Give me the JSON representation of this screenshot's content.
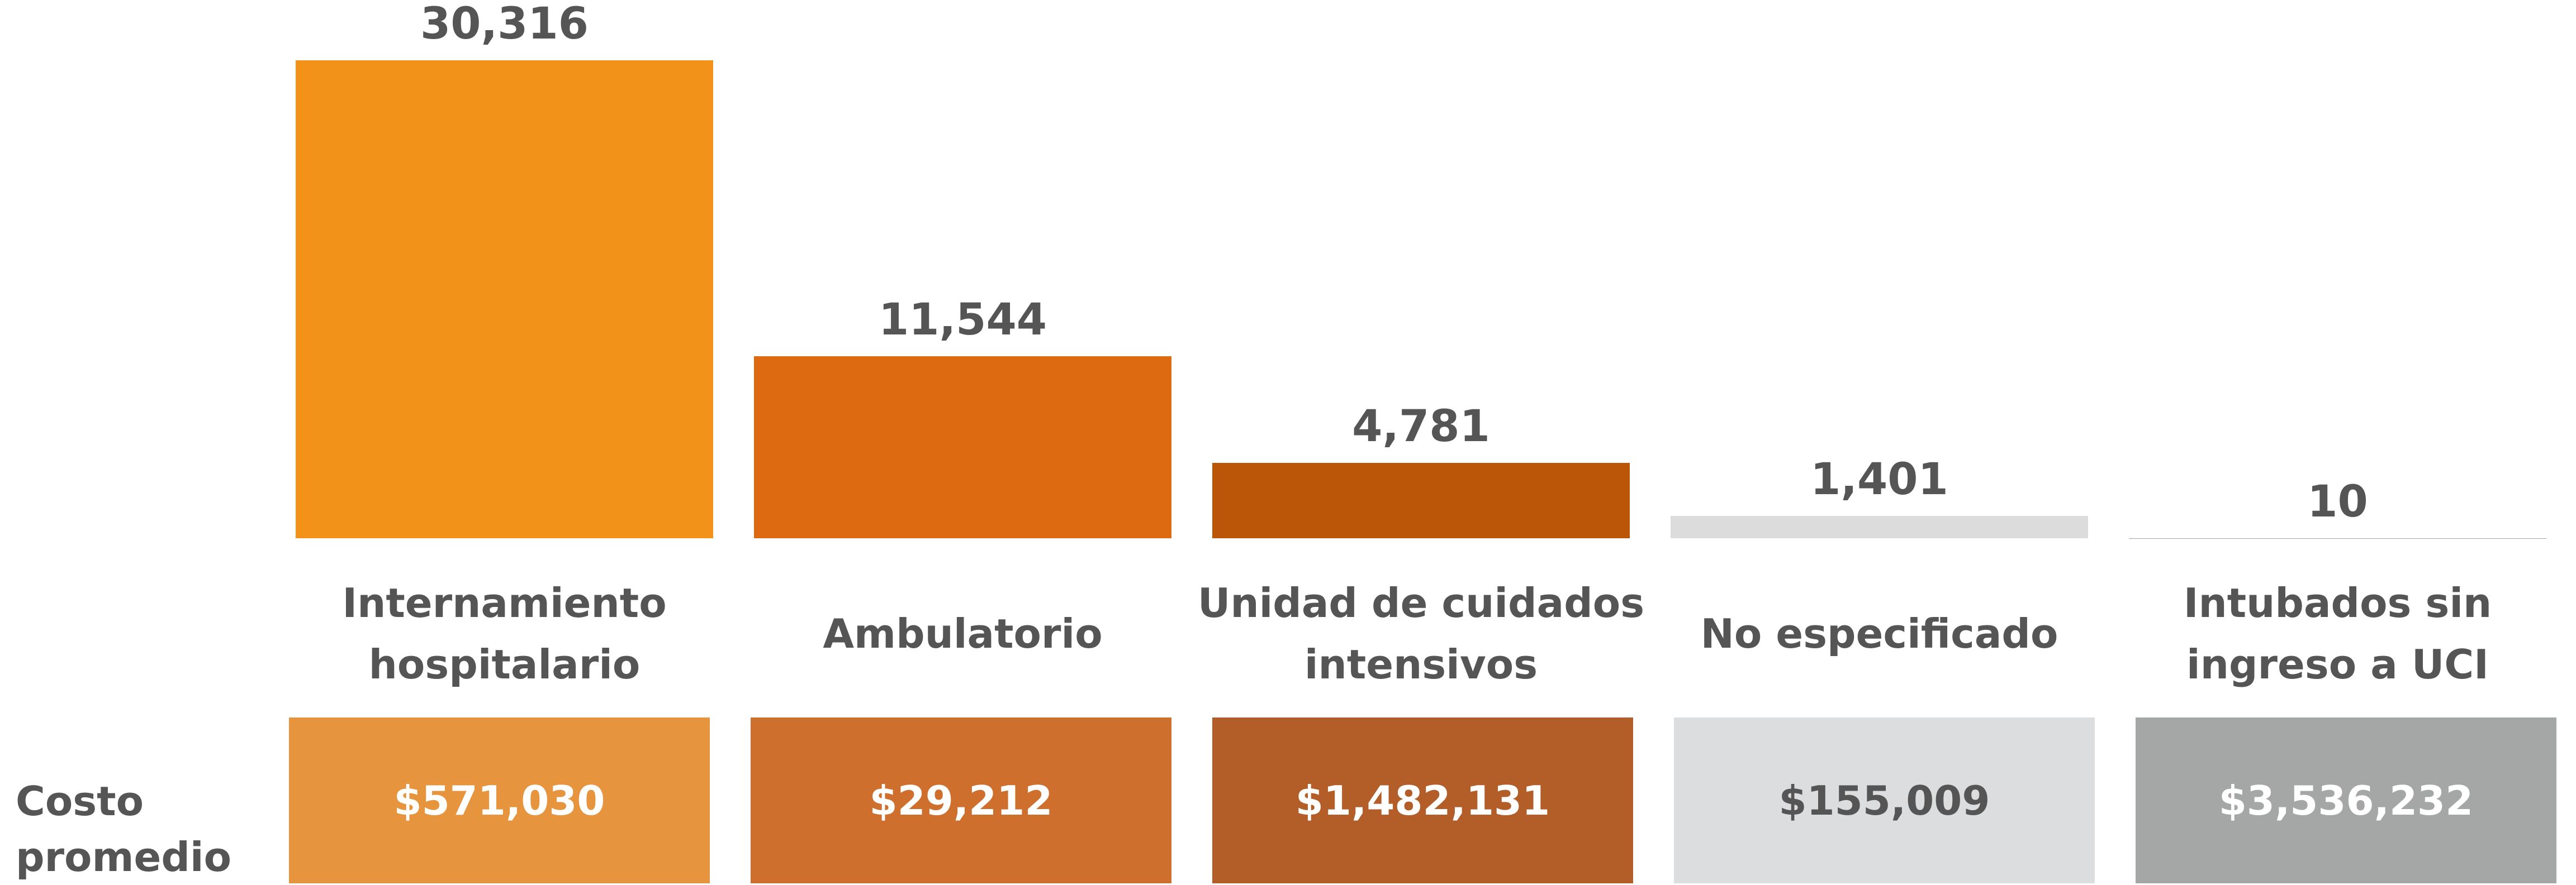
{
  "chart_data": {
    "type": "bar",
    "categories": [
      "Internamiento hospitalario",
      "Ambulatorio",
      "Unidad de cuidados intensivos",
      "No especificado",
      "Intubados sin ingreso a UCI"
    ],
    "values": [
      30316,
      11544,
      4781,
      1401,
      10
    ],
    "value_labels": [
      "30,316",
      "11,544",
      "4,781",
      "1,401",
      "10"
    ],
    "colors": [
      "#f39219",
      "#dd6a10",
      "#bb5609",
      "#dcdcdc",
      "#a4a7a6"
    ],
    "cost_label": "Costo promedio",
    "costs": [
      "$571,030",
      "$29,212",
      "$1,482,131",
      "$155,009",
      "$3,536,232"
    ],
    "cost_colors": [
      "#e6953e",
      "#cf6f2d",
      "#b35d28",
      "#dcdddf",
      "#a4a7a6"
    ],
    "cost_text_colors": [
      "#ffffff",
      "#ffffff",
      "#ffffff",
      "#555555",
      "#ffffff"
    ]
  }
}
